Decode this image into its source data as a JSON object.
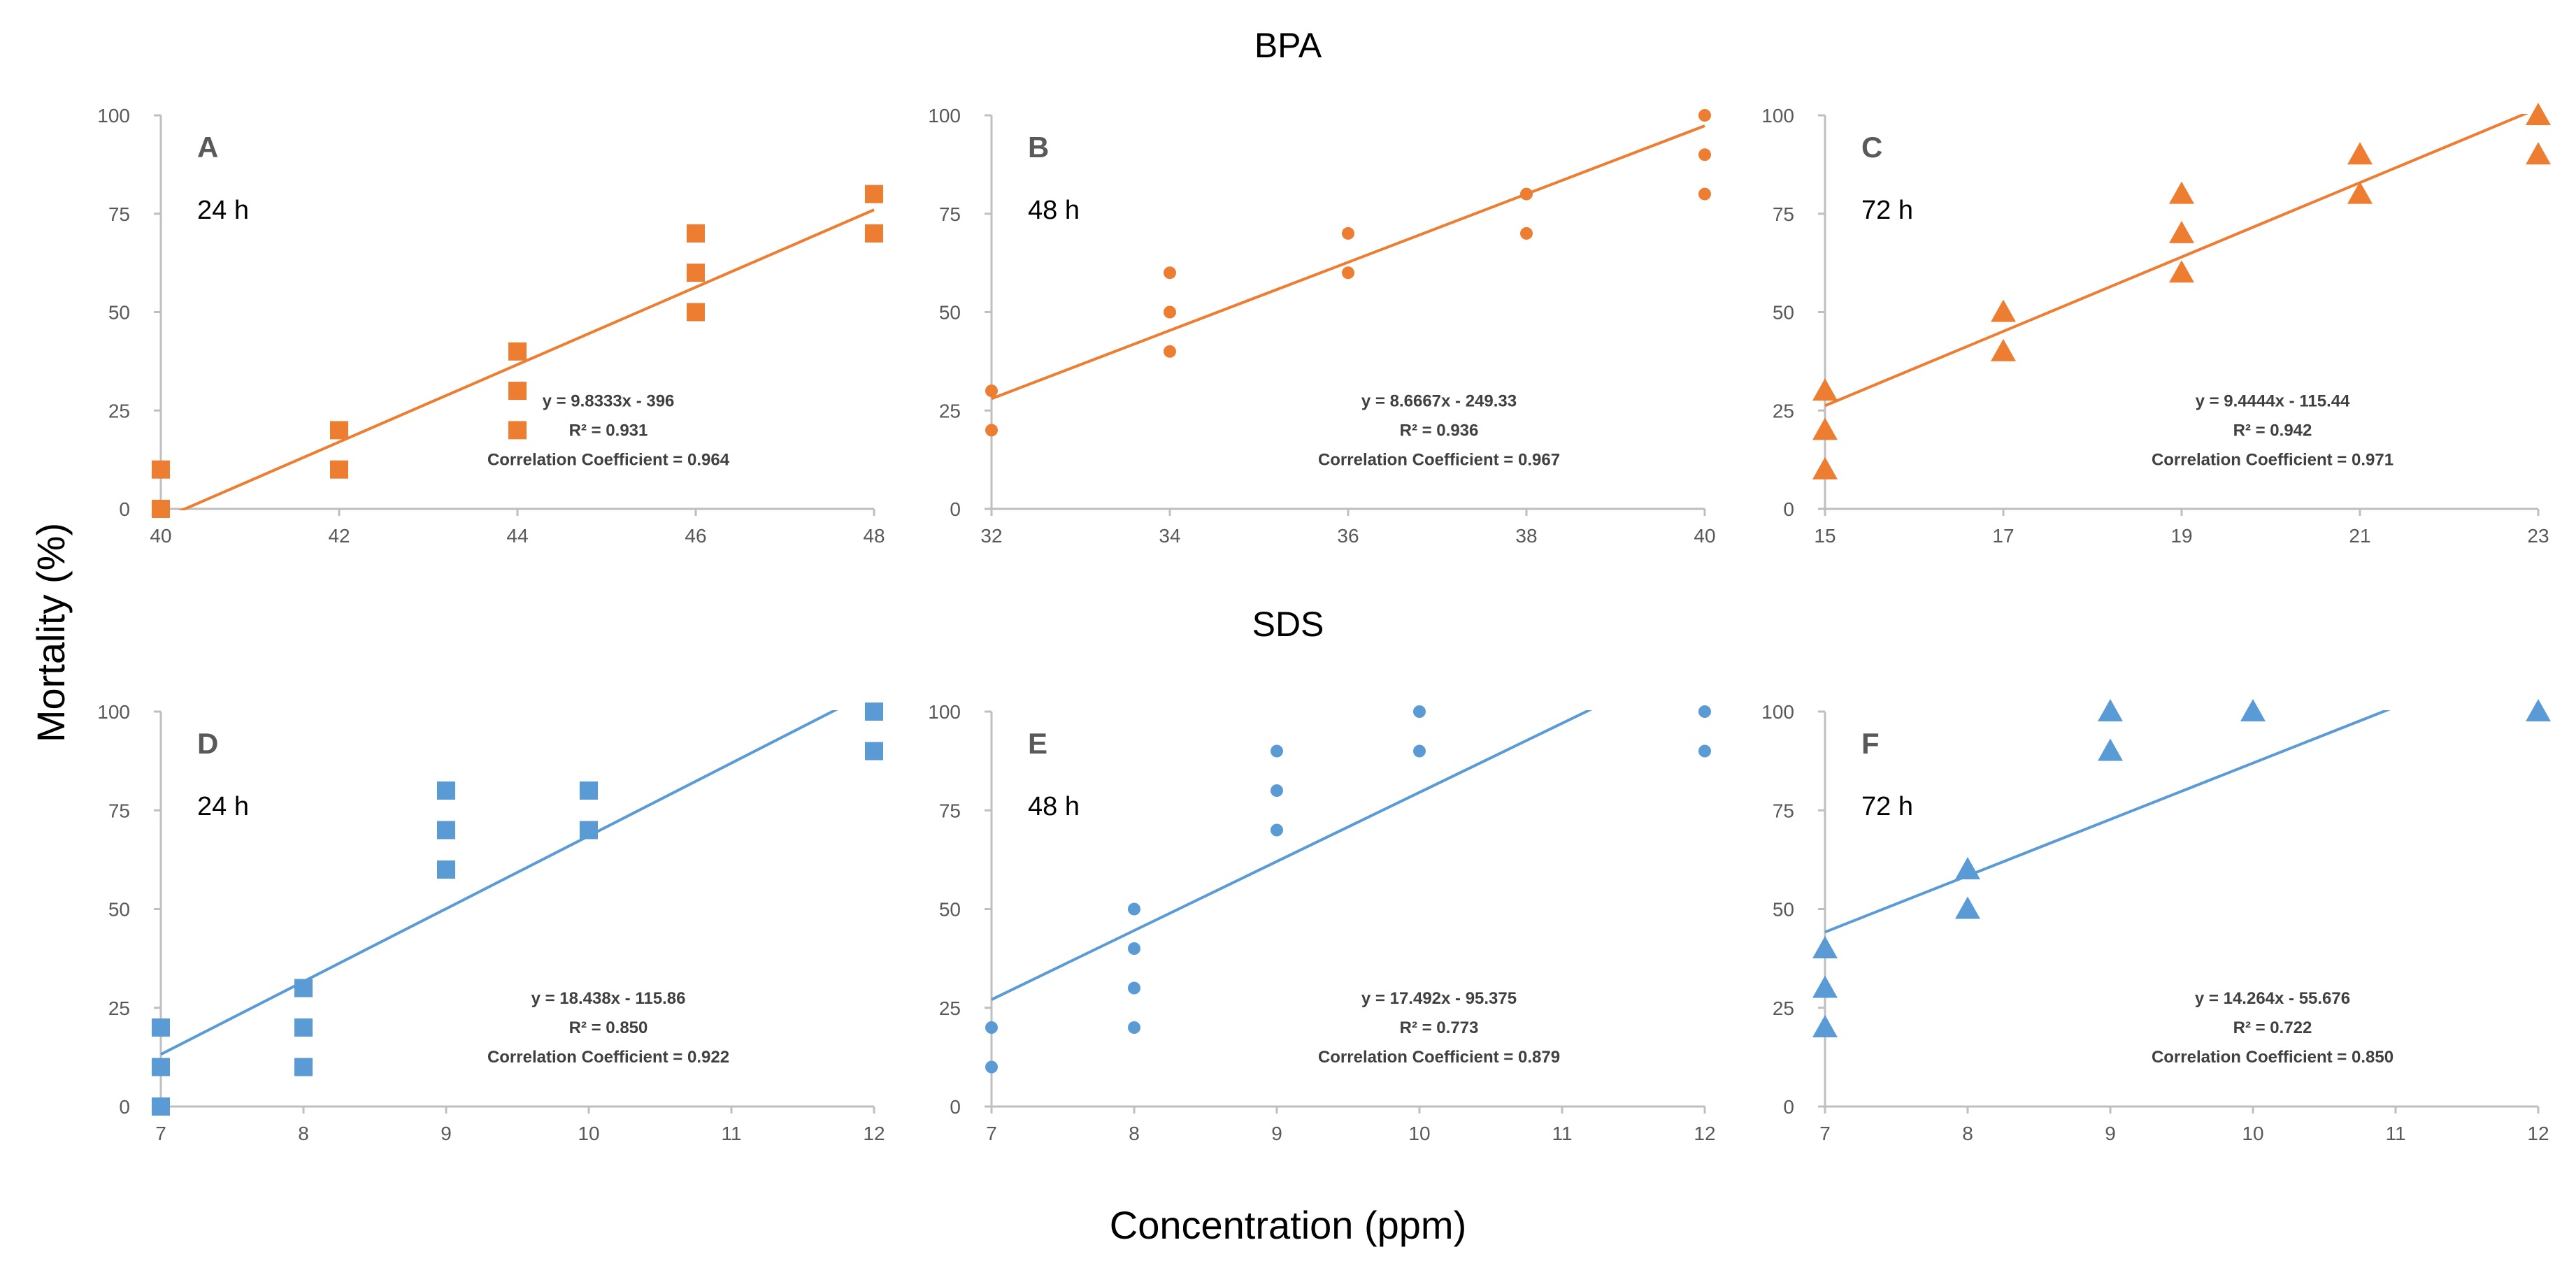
{
  "figure": {
    "group_titles": [
      "BPA",
      "SDS"
    ],
    "ylabel": "Mortality (%)",
    "xlabel": "Concentration (ppm)"
  },
  "chart_data": [
    {
      "type": "scatter",
      "group": "BPA",
      "panel_label": "A",
      "time_label": "24 h",
      "marker": "square",
      "color": "#ED7D31",
      "xlim": [
        40,
        48
      ],
      "xticks": [
        40,
        42,
        44,
        46,
        48
      ],
      "ylim": [
        0,
        100
      ],
      "yticks": [
        0,
        25,
        50,
        75,
        100
      ],
      "points": [
        {
          "x": 40,
          "y": 0
        },
        {
          "x": 40,
          "y": 10
        },
        {
          "x": 42,
          "y": 10
        },
        {
          "x": 42,
          "y": 20
        },
        {
          "x": 44,
          "y": 20
        },
        {
          "x": 44,
          "y": 30
        },
        {
          "x": 44,
          "y": 40
        },
        {
          "x": 46,
          "y": 50
        },
        {
          "x": 46,
          "y": 60
        },
        {
          "x": 46,
          "y": 70
        },
        {
          "x": 48,
          "y": 70
        },
        {
          "x": 48,
          "y": 80
        }
      ],
      "trendline": {
        "slope": 9.8333,
        "intercept": -396
      },
      "equation": "y = 9.8333x - 396",
      "r2": "R² = 0.931",
      "correlation": "Correlation Coefficient = 0.964"
    },
    {
      "type": "scatter",
      "group": "BPA",
      "panel_label": "B",
      "time_label": "48 h",
      "marker": "circle",
      "color": "#ED7D31",
      "xlim": [
        32,
        40
      ],
      "xticks": [
        32,
        34,
        36,
        38,
        40
      ],
      "ylim": [
        0,
        100
      ],
      "yticks": [
        0,
        25,
        50,
        75,
        100
      ],
      "points": [
        {
          "x": 32,
          "y": 20
        },
        {
          "x": 32,
          "y": 30
        },
        {
          "x": 34,
          "y": 40
        },
        {
          "x": 34,
          "y": 50
        },
        {
          "x": 34,
          "y": 60
        },
        {
          "x": 36,
          "y": 60
        },
        {
          "x": 36,
          "y": 70
        },
        {
          "x": 38,
          "y": 70
        },
        {
          "x": 38,
          "y": 80
        },
        {
          "x": 40,
          "y": 80
        },
        {
          "x": 40,
          "y": 90
        },
        {
          "x": 40,
          "y": 100
        }
      ],
      "trendline": {
        "slope": 8.6667,
        "intercept": -249.33
      },
      "equation": "y = 8.6667x - 249.33",
      "r2": "R² = 0.936",
      "correlation": "Correlation Coefficient = 0.967"
    },
    {
      "type": "scatter",
      "group": "BPA",
      "panel_label": "C",
      "time_label": "72 h",
      "marker": "triangle",
      "color": "#ED7D31",
      "xlim": [
        15,
        23
      ],
      "xticks": [
        15,
        17,
        19,
        21,
        23
      ],
      "ylim": [
        0,
        100
      ],
      "yticks": [
        0,
        25,
        50,
        75,
        100
      ],
      "points": [
        {
          "x": 15,
          "y": 10
        },
        {
          "x": 15,
          "y": 20
        },
        {
          "x": 15,
          "y": 30
        },
        {
          "x": 17,
          "y": 40
        },
        {
          "x": 17,
          "y": 50
        },
        {
          "x": 19,
          "y": 60
        },
        {
          "x": 19,
          "y": 70
        },
        {
          "x": 19,
          "y": 80
        },
        {
          "x": 21,
          "y": 80
        },
        {
          "x": 21,
          "y": 90
        },
        {
          "x": 23,
          "y": 90
        },
        {
          "x": 23,
          "y": 100
        }
      ],
      "trendline": {
        "slope": 9.4444,
        "intercept": -115.44
      },
      "equation": "y = 9.4444x - 115.44",
      "r2": "R² = 0.942",
      "correlation": "Correlation Coefficient = 0.971"
    },
    {
      "type": "scatter",
      "group": "SDS",
      "panel_label": "D",
      "time_label": "24 h",
      "marker": "square",
      "color": "#5B9BD5",
      "xlim": [
        7,
        12
      ],
      "xticks": [
        7,
        8,
        9,
        10,
        11,
        12
      ],
      "ylim": [
        0,
        100
      ],
      "yticks": [
        0,
        25,
        50,
        75,
        100
      ],
      "points": [
        {
          "x": 7,
          "y": 0
        },
        {
          "x": 7,
          "y": 10
        },
        {
          "x": 7,
          "y": 20
        },
        {
          "x": 8,
          "y": 10
        },
        {
          "x": 8,
          "y": 20
        },
        {
          "x": 8,
          "y": 30
        },
        {
          "x": 9,
          "y": 60
        },
        {
          "x": 9,
          "y": 70
        },
        {
          "x": 9,
          "y": 80
        },
        {
          "x": 10,
          "y": 70
        },
        {
          "x": 10,
          "y": 80
        },
        {
          "x": 12,
          "y": 90
        },
        {
          "x": 12,
          "y": 100
        }
      ],
      "trendline": {
        "slope": 18.438,
        "intercept": -115.86
      },
      "equation": "y = 18.438x - 115.86",
      "r2": "R² = 0.850",
      "correlation": "Correlation Coefficient = 0.922"
    },
    {
      "type": "scatter",
      "group": "SDS",
      "panel_label": "E",
      "time_label": "48 h",
      "marker": "circle",
      "color": "#5B9BD5",
      "xlim": [
        7,
        12
      ],
      "xticks": [
        7,
        8,
        9,
        10,
        11,
        12
      ],
      "ylim": [
        0,
        100
      ],
      "yticks": [
        0,
        25,
        50,
        75,
        100
      ],
      "points": [
        {
          "x": 7,
          "y": 10
        },
        {
          "x": 7,
          "y": 20
        },
        {
          "x": 8,
          "y": 20
        },
        {
          "x": 8,
          "y": 30
        },
        {
          "x": 8,
          "y": 40
        },
        {
          "x": 8,
          "y": 50
        },
        {
          "x": 9,
          "y": 70
        },
        {
          "x": 9,
          "y": 80
        },
        {
          "x": 9,
          "y": 90
        },
        {
          "x": 10,
          "y": 90
        },
        {
          "x": 10,
          "y": 100
        },
        {
          "x": 12,
          "y": 90
        },
        {
          "x": 12,
          "y": 100
        }
      ],
      "trendline": {
        "slope": 17.492,
        "intercept": -95.375
      },
      "equation": "y = 17.492x - 95.375",
      "r2": "R² = 0.773",
      "correlation": "Correlation Coefficient = 0.879"
    },
    {
      "type": "scatter",
      "group": "SDS",
      "panel_label": "F",
      "time_label": "72 h",
      "marker": "triangle",
      "color": "#5B9BD5",
      "xlim": [
        7,
        12
      ],
      "xticks": [
        7,
        8,
        9,
        10,
        11,
        12
      ],
      "ylim": [
        0,
        100
      ],
      "yticks": [
        0,
        25,
        50,
        75,
        100
      ],
      "points": [
        {
          "x": 7,
          "y": 20
        },
        {
          "x": 7,
          "y": 30
        },
        {
          "x": 7,
          "y": 40
        },
        {
          "x": 8,
          "y": 50
        },
        {
          "x": 8,
          "y": 60
        },
        {
          "x": 9,
          "y": 90
        },
        {
          "x": 9,
          "y": 100
        },
        {
          "x": 10,
          "y": 100
        },
        {
          "x": 12,
          "y": 100
        }
      ],
      "trendline": {
        "slope": 14.264,
        "intercept": -55.676
      },
      "equation": "y = 14.264x - 55.676",
      "r2": "R² = 0.722",
      "correlation": "Correlation Coefficient = 0.850"
    }
  ]
}
